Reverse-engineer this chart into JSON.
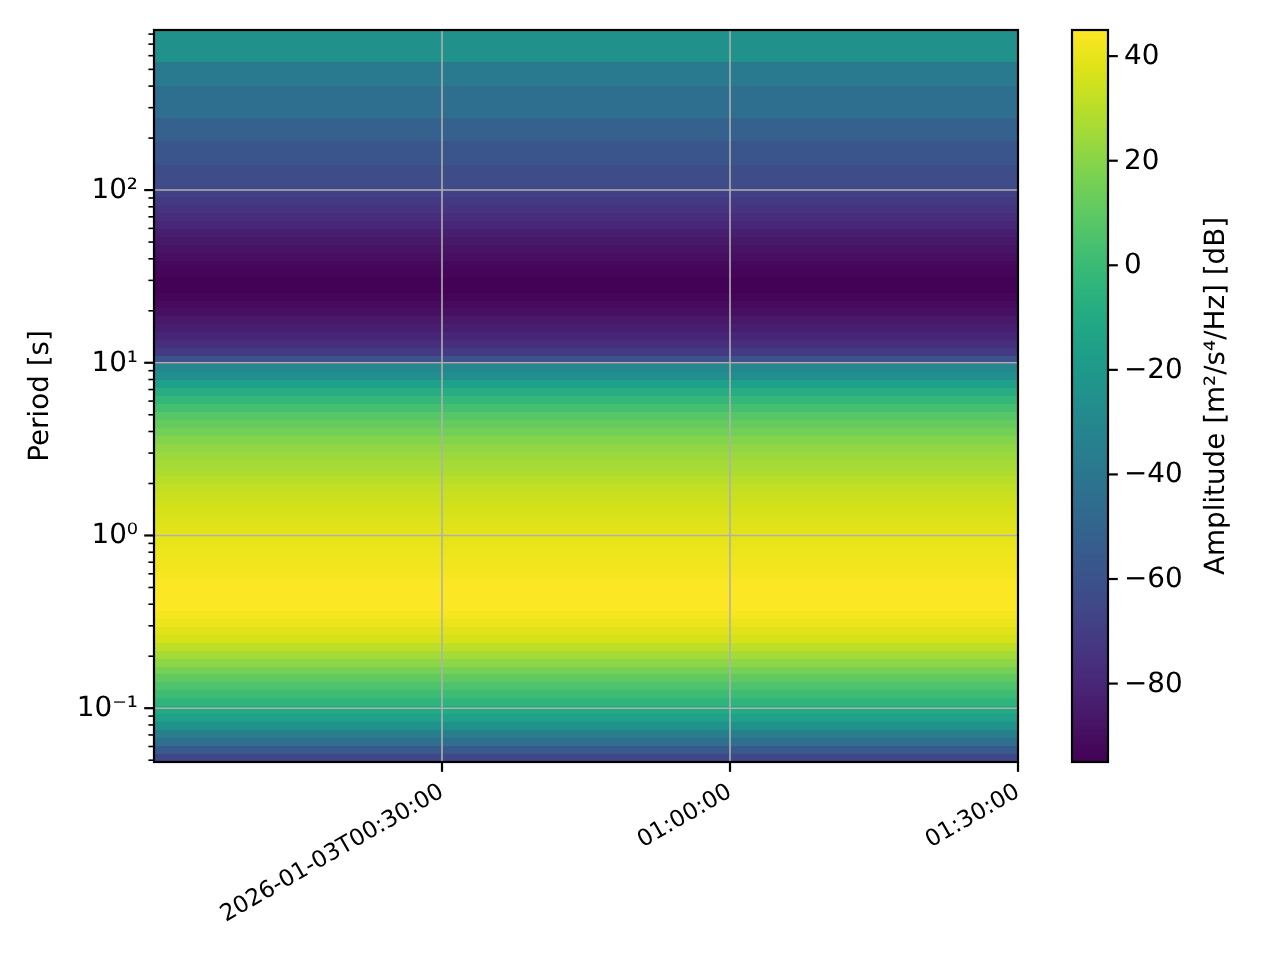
{
  "chart_data": {
    "type": "heatmap",
    "ylabel": "Period [s]",
    "clabel": "Amplitude [m²/s⁴/Hz] [dB]",
    "x": [
      "2026-01-03T00:15",
      "2026-01-03T00:45",
      "2026-01-03T01:15"
    ],
    "xlim": [
      "2026-01-03T00:00",
      "2026-01-03T01:30"
    ],
    "xticks": [
      {
        "value": "2026-01-03T00:30",
        "label": "2026-01-03T00:30:00"
      },
      {
        "value": "2026-01-03T01:00",
        "label": "01:00:00"
      },
      {
        "value": "2026-01-03T01:30",
        "label": "01:30:00"
      }
    ],
    "log": "y",
    "ylim": [
      0.0488,
      845
    ],
    "yticks": [
      {
        "value": 0.05,
        "label": null
      },
      {
        "value": 0.06,
        "label": null
      },
      {
        "value": 0.07,
        "label": null
      },
      {
        "value": 0.08,
        "label": null
      },
      {
        "value": 0.09,
        "label": null
      },
      {
        "value": 0.1,
        "label": "10⁻¹"
      },
      {
        "value": 0.2,
        "label": null
      },
      {
        "value": 0.3,
        "label": null
      },
      {
        "value": 0.4,
        "label": null
      },
      {
        "value": 0.5,
        "label": null
      },
      {
        "value": 0.6,
        "label": null
      },
      {
        "value": 0.7,
        "label": null
      },
      {
        "value": 0.8,
        "label": null
      },
      {
        "value": 0.9,
        "label": null
      },
      {
        "value": 1,
        "label": "10⁰"
      },
      {
        "value": 2,
        "label": null
      },
      {
        "value": 3,
        "label": null
      },
      {
        "value": 4,
        "label": null
      },
      {
        "value": 5,
        "label": null
      },
      {
        "value": 6,
        "label": null
      },
      {
        "value": 7,
        "label": null
      },
      {
        "value": 8,
        "label": null
      },
      {
        "value": 9,
        "label": null
      },
      {
        "value": 10,
        "label": "10¹"
      },
      {
        "value": 20,
        "label": null
      },
      {
        "value": 30,
        "label": null
      },
      {
        "value": 40,
        "label": null
      },
      {
        "value": 50,
        "label": null
      },
      {
        "value": 60,
        "label": null
      },
      {
        "value": 70,
        "label": null
      },
      {
        "value": 80,
        "label": null
      },
      {
        "value": 90,
        "label": null
      },
      {
        "value": 100,
        "label": "10²"
      },
      {
        "value": 200,
        "label": null
      },
      {
        "value": 300,
        "label": null
      },
      {
        "value": 400,
        "label": null
      },
      {
        "value": 500,
        "label": null
      },
      {
        "value": 600,
        "label": null
      },
      {
        "value": 700,
        "label": null
      },
      {
        "value": 800,
        "label": null
      }
    ],
    "grid": true,
    "clim": [
      -95,
      45
    ],
    "cticks": [
      {
        "value": -80,
        "label": "−80"
      },
      {
        "value": -60,
        "label": "−60"
      },
      {
        "value": -40,
        "label": "−40"
      },
      {
        "value": -20,
        "label": "−20"
      },
      0,
      20,
      40
    ],
    "cells": [
      [
        -25,
        -25,
        -25
      ],
      [
        -25,
        -25,
        -25
      ],
      [
        -25,
        -25,
        -25
      ],
      [
        -25,
        -25,
        -25
      ],
      [
        -38,
        -38,
        -38
      ],
      [
        -38,
        -38,
        -38
      ],
      [
        -38,
        -38,
        -38
      ],
      [
        -45,
        -45,
        -45
      ],
      [
        -45,
        -45,
        -45
      ],
      [
        -45,
        -45,
        -45
      ],
      [
        -45,
        -45,
        -45
      ],
      [
        -52,
        -52,
        -52
      ],
      [
        -52,
        -52,
        -52
      ],
      [
        -52,
        -52,
        -52
      ],
      [
        -58,
        -58,
        -58
      ],
      [
        -58,
        -58,
        -58
      ],
      [
        -58,
        -58,
        -58
      ],
      [
        -63,
        -63,
        -63
      ],
      [
        -63,
        -63,
        -63
      ],
      [
        -63,
        -63,
        -63
      ],
      [
        -68,
        -68,
        -68
      ],
      [
        -71,
        -71,
        -71
      ],
      [
        -74,
        -74,
        -74
      ],
      [
        -77,
        -77,
        -77
      ],
      [
        -80,
        -80,
        -80
      ],
      [
        -83,
        -83,
        -83
      ],
      [
        -86,
        -86,
        -86
      ],
      [
        -88,
        -88,
        -88
      ],
      [
        -90,
        -90,
        -90
      ],
      [
        -92,
        -92,
        -92
      ],
      [
        -93,
        -93,
        -93
      ],
      [
        -94,
        -94,
        -94
      ],
      [
        -94,
        -94,
        -94
      ],
      [
        -93,
        -93,
        -93
      ],
      [
        -91,
        -91,
        -91
      ],
      [
        -89,
        -89,
        -89
      ],
      [
        -86,
        -86,
        -86
      ],
      [
        -83,
        -83,
        -83
      ],
      [
        -80,
        -80,
        -80
      ],
      [
        -76,
        -76,
        -76
      ],
      [
        -71,
        -71,
        -71
      ],
      [
        -60,
        -60,
        -60
      ],
      [
        -30,
        -30,
        -30
      ],
      [
        -26,
        -26,
        -26
      ],
      [
        -16,
        -16,
        -16
      ],
      [
        -8,
        -8,
        -8
      ],
      [
        -2,
        -2,
        -2
      ],
      [
        3,
        3,
        3
      ],
      [
        8,
        8,
        8
      ],
      [
        12,
        12,
        12
      ],
      [
        15,
        15,
        15
      ],
      [
        19,
        19,
        19
      ],
      [
        22,
        22,
        22
      ],
      [
        24,
        24,
        24
      ],
      [
        26,
        26,
        26
      ],
      [
        28,
        28,
        28
      ],
      [
        30,
        30,
        30
      ],
      [
        32,
        32,
        32
      ],
      [
        33,
        33,
        33
      ],
      [
        35,
        35,
        35
      ],
      [
        36,
        36,
        36
      ],
      [
        37,
        37,
        37
      ],
      [
        38,
        38,
        38
      ],
      [
        39,
        39,
        39
      ],
      [
        40,
        40,
        40
      ],
      [
        41,
        41,
        41
      ],
      [
        42,
        42,
        42
      ],
      [
        42,
        42,
        42
      ],
      [
        43,
        43,
        43
      ],
      [
        44,
        44,
        44
      ],
      [
        44,
        44,
        44
      ],
      [
        44,
        44,
        44
      ],
      [
        44,
        44,
        44
      ],
      [
        43,
        43,
        43
      ],
      [
        41,
        41,
        41
      ],
      [
        38,
        38,
        38
      ],
      [
        36,
        36,
        36
      ],
      [
        31,
        31,
        31
      ],
      [
        26,
        26,
        26
      ],
      [
        21,
        21,
        21
      ],
      [
        16,
        16,
        16
      ],
      [
        11,
        11,
        11
      ],
      [
        6,
        6,
        6
      ],
      [
        1,
        1,
        1
      ],
      [
        -4,
        -4,
        -4
      ],
      [
        -10,
        -10,
        -10
      ],
      [
        -16,
        -16,
        -16
      ],
      [
        -24,
        -24,
        -24
      ],
      [
        -35,
        -35,
        -35
      ],
      [
        -45,
        -45,
        -45
      ],
      [
        -56,
        -56,
        -56
      ],
      [
        -66,
        -66,
        -66
      ]
    ]
  }
}
